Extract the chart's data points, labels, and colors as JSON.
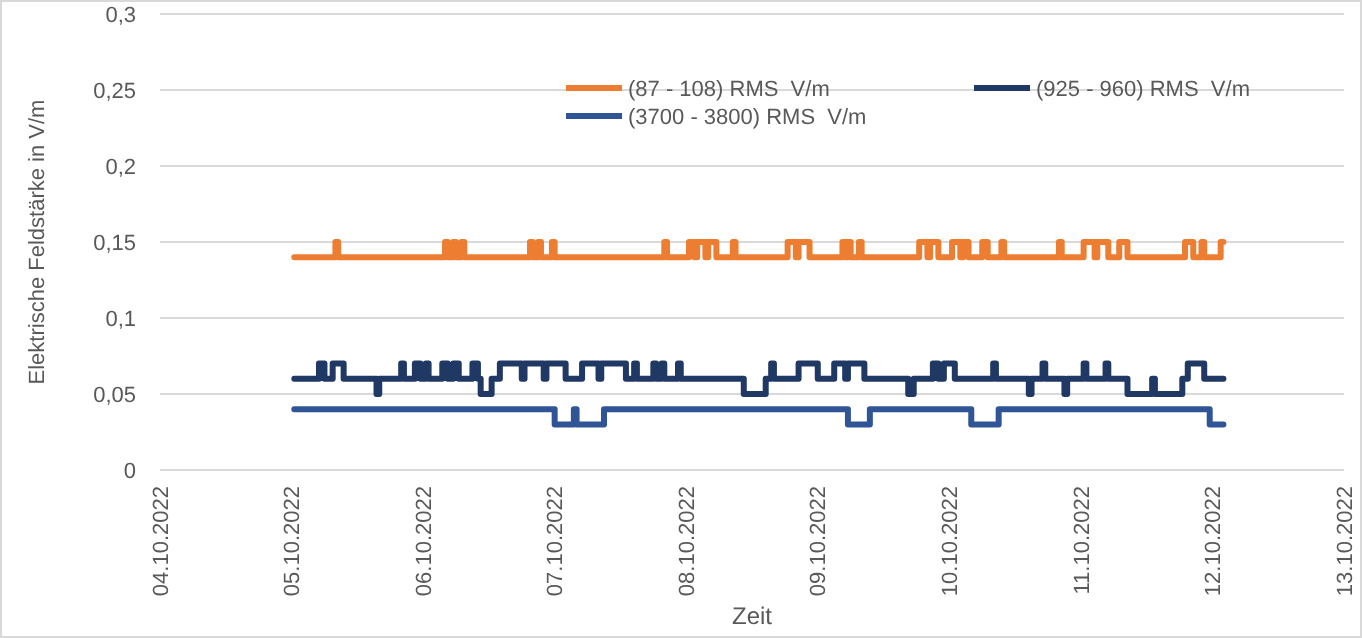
{
  "chart_data": {
    "type": "line",
    "xlabel": "Zeit",
    "ylabel": "Elektrische Feldstärke in V/m",
    "grid": "y",
    "legend": "top",
    "xlim": [
      "2022-10-04",
      "2022-10-13"
    ],
    "xticks": [
      {
        "value": "2022-10-04",
        "label": "04.10.2022"
      },
      {
        "value": "2022-10-05",
        "label": "05.10.2022"
      },
      {
        "value": "2022-10-06",
        "label": "06.10.2022"
      },
      {
        "value": "2022-10-07",
        "label": "07.10.2022"
      },
      {
        "value": "2022-10-08",
        "label": "08.10.2022"
      },
      {
        "value": "2022-10-09",
        "label": "09.10.2022"
      },
      {
        "value": "2022-10-10",
        "label": "10.10.2022"
      },
      {
        "value": "2022-10-11",
        "label": "11.10.2022"
      },
      {
        "value": "2022-10-12",
        "label": "12.10.2022"
      },
      {
        "value": "2022-10-13",
        "label": "13.10.2022"
      }
    ],
    "ylim": [
      0,
      0.3
    ],
    "yticks": [
      0,
      {
        "value": 0.05,
        "label": "0,05"
      },
      {
        "value": 0.1,
        "label": "0,1"
      },
      {
        "value": 0.15,
        "label": "0,15"
      },
      {
        "value": 0.2,
        "label": "0,2"
      },
      {
        "value": 0.25,
        "label": "0,25"
      },
      {
        "value": 0.3,
        "label": "0,3"
      }
    ],
    "series": [
      {
        "name": "(87 - 108) RMS  V/m",
        "color": "#ed7d31",
        "x": [
          "2022-10-05T00:30",
          "2022-10-05T08:00",
          "2022-10-05T08:00",
          "2022-10-05T08:30",
          "2022-10-05T08:30",
          "2022-10-06T04:00",
          "2022-10-06T04:00",
          "2022-10-06T04:30",
          "2022-10-06T04:30",
          "2022-10-06T05:30",
          "2022-10-06T05:30",
          "2022-10-06T06:00",
          "2022-10-06T06:00",
          "2022-10-06T07:00",
          "2022-10-06T07:00",
          "2022-10-06T07:30",
          "2022-10-06T07:30",
          "2022-10-06T19:30",
          "2022-10-06T19:30",
          "2022-10-06T20:00",
          "2022-10-06T20:00",
          "2022-10-06T21:00",
          "2022-10-06T21:00",
          "2022-10-06T21:30",
          "2022-10-06T21:30",
          "2022-10-06T23:30",
          "2022-10-06T23:30",
          "2022-10-07T00:00",
          "2022-10-07T00:00",
          "2022-10-07T20:00",
          "2022-10-07T20:00",
          "2022-10-07T20:30",
          "2022-10-07T20:30",
          "2022-10-08T00:30",
          "2022-10-08T00:30",
          "2022-10-08T01:30",
          "2022-10-08T01:30",
          "2022-10-08T02:00",
          "2022-10-08T02:00",
          "2022-10-08T03:30",
          "2022-10-08T03:30",
          "2022-10-08T04:00",
          "2022-10-08T04:00",
          "2022-10-08T05:30",
          "2022-10-08T05:30",
          "2022-10-08T08:30",
          "2022-10-08T08:30",
          "2022-10-08T09:00",
          "2022-10-08T09:00",
          "2022-10-08T18:30",
          "2022-10-08T18:30",
          "2022-10-08T20:00",
          "2022-10-08T20:00",
          "2022-10-08T20:30",
          "2022-10-08T20:30",
          "2022-10-08T22:30",
          "2022-10-08T22:30",
          "2022-10-09T04:30",
          "2022-10-09T04:30",
          "2022-10-09T05:00",
          "2022-10-09T05:00",
          "2022-10-09T05:30",
          "2022-10-09T05:30",
          "2022-10-09T06:00",
          "2022-10-09T06:00",
          "2022-10-09T07:30",
          "2022-10-09T07:30",
          "2022-10-09T08:00",
          "2022-10-09T08:00",
          "2022-10-09T18:30",
          "2022-10-09T18:30",
          "2022-10-09T20:00",
          "2022-10-09T20:00",
          "2022-10-09T20:30",
          "2022-10-09T20:30",
          "2022-10-09T22:00",
          "2022-10-09T22:00",
          "2022-10-10T00:30",
          "2022-10-10T00:30",
          "2022-10-10T02:00",
          "2022-10-10T02:00",
          "2022-10-10T02:30",
          "2022-10-10T02:30",
          "2022-10-10T03:30",
          "2022-10-10T03:30",
          "2022-10-10T06:00",
          "2022-10-10T06:00",
          "2022-10-10T07:00",
          "2022-10-10T07:00",
          "2022-10-10T09:30",
          "2022-10-10T09:30",
          "2022-10-10T10:00",
          "2022-10-10T10:00",
          "2022-10-10T20:00",
          "2022-10-10T20:00",
          "2022-10-10T20:30",
          "2022-10-10T20:30",
          "2022-10-11T00:30",
          "2022-10-11T00:30",
          "2022-10-11T02:30",
          "2022-10-11T02:30",
          "2022-10-11T03:00",
          "2022-10-11T03:00",
          "2022-10-11T05:00",
          "2022-10-11T05:00",
          "2022-10-11T07:00",
          "2022-10-11T07:00",
          "2022-10-11T08:30",
          "2022-10-11T08:30",
          "2022-10-11T19:00",
          "2022-10-11T19:00",
          "2022-10-11T20:30",
          "2022-10-11T20:30",
          "2022-10-11T22:00",
          "2022-10-11T22:00",
          "2022-10-11T22:30",
          "2022-10-11T22:30",
          "2022-10-12T01:30",
          "2022-10-12T01:30",
          "2022-10-12T02:00"
        ],
        "values": [
          0.14,
          0.14,
          0.15,
          0.15,
          0.14,
          0.14,
          0.15,
          0.15,
          0.14,
          0.14,
          0.15,
          0.15,
          0.14,
          0.14,
          0.15,
          0.15,
          0.14,
          0.14,
          0.15,
          0.15,
          0.14,
          0.14,
          0.15,
          0.15,
          0.14,
          0.14,
          0.15,
          0.15,
          0.14,
          0.14,
          0.15,
          0.15,
          0.14,
          0.14,
          0.15,
          0.15,
          0.14,
          0.14,
          0.15,
          0.15,
          0.14,
          0.14,
          0.15,
          0.15,
          0.14,
          0.14,
          0.15,
          0.15,
          0.14,
          0.14,
          0.15,
          0.15,
          0.14,
          0.14,
          0.15,
          0.15,
          0.14,
          0.14,
          0.15,
          0.15,
          0.14,
          0.14,
          0.15,
          0.15,
          0.14,
          0.14,
          0.15,
          0.15,
          0.14,
          0.14,
          0.15,
          0.15,
          0.14,
          0.14,
          0.15,
          0.15,
          0.14,
          0.14,
          0.15,
          0.15,
          0.14,
          0.14,
          0.15,
          0.15,
          0.14,
          0.14,
          0.15,
          0.15,
          0.14,
          0.14,
          0.15,
          0.15,
          0.14,
          0.14,
          0.15,
          0.15,
          0.14,
          0.14,
          0.15,
          0.15,
          0.14,
          0.14,
          0.15,
          0.15,
          0.14,
          0.14,
          0.15,
          0.15,
          0.14,
          0.14,
          0.15,
          0.15,
          0.14,
          0.14,
          0.15,
          0.15,
          0.14,
          0.14,
          0.15,
          0.15
        ]
      },
      {
        "name": "(925 - 960) RMS  V/m",
        "color": "#203864",
        "x": [
          "2022-10-05T00:30",
          "2022-10-05T05:00",
          "2022-10-05T05:00",
          "2022-10-05T06:00",
          "2022-10-05T06:00",
          "2022-10-05T07:30",
          "2022-10-05T07:30",
          "2022-10-05T09:30",
          "2022-10-05T09:30",
          "2022-10-05T15:30",
          "2022-10-05T15:30",
          "2022-10-05T16:00",
          "2022-10-05T16:00",
          "2022-10-05T20:00",
          "2022-10-05T20:00",
          "2022-10-05T20:30",
          "2022-10-05T20:30",
          "2022-10-05T22:30",
          "2022-10-05T22:30",
          "2022-10-05T23:30",
          "2022-10-05T23:30",
          "2022-10-06T00:30",
          "2022-10-06T00:30",
          "2022-10-06T01:00",
          "2022-10-06T01:00",
          "2022-10-06T03:30",
          "2022-10-06T03:30",
          "2022-10-06T04:30",
          "2022-10-06T04:30",
          "2022-10-06T05:30",
          "2022-10-06T05:30",
          "2022-10-06T06:30",
          "2022-10-06T06:30",
          "2022-10-06T09:00",
          "2022-10-06T09:00",
          "2022-10-06T10:00",
          "2022-10-06T10:00",
          "2022-10-06T10:30",
          "2022-10-06T10:30",
          "2022-10-06T12:30",
          "2022-10-06T12:30",
          "2022-10-06T14:00",
          "2022-10-06T14:00",
          "2022-10-06T18:00",
          "2022-10-06T18:00",
          "2022-10-06T18:30",
          "2022-10-06T18:30",
          "2022-10-06T22:00",
          "2022-10-06T22:00",
          "2022-10-06T22:30",
          "2022-10-06T22:30",
          "2022-10-07T02:00",
          "2022-10-07T02:00",
          "2022-10-07T05:00",
          "2022-10-07T05:00",
          "2022-10-07T08:00",
          "2022-10-07T08:00",
          "2022-10-07T08:30",
          "2022-10-07T08:30",
          "2022-10-07T13:00",
          "2022-10-07T13:00",
          "2022-10-07T14:30",
          "2022-10-07T14:30",
          "2022-10-07T15:00",
          "2022-10-07T15:00",
          "2022-10-07T18:00",
          "2022-10-07T18:00",
          "2022-10-07T18:30",
          "2022-10-07T18:30",
          "2022-10-07T19:30",
          "2022-10-07T19:30",
          "2022-10-07T20:00",
          "2022-10-07T20:00",
          "2022-10-07T22:30",
          "2022-10-07T22:30",
          "2022-10-07T23:00",
          "2022-10-07T23:00",
          "2022-10-08T10:30",
          "2022-10-08T10:30",
          "2022-10-08T14:30",
          "2022-10-08T14:30",
          "2022-10-08T15:30",
          "2022-10-08T15:30",
          "2022-10-08T16:00",
          "2022-10-08T16:00",
          "2022-10-08T20:30",
          "2022-10-08T20:30",
          "2022-10-09T00:00",
          "2022-10-09T00:00",
          "2022-10-09T03:00",
          "2022-10-09T03:00",
          "2022-10-09T05:00",
          "2022-10-09T05:00",
          "2022-10-09T05:30",
          "2022-10-09T05:30",
          "2022-10-09T08:30",
          "2022-10-09T08:30",
          "2022-10-09T16:30",
          "2022-10-09T16:30",
          "2022-10-09T17:30",
          "2022-10-09T17:30",
          "2022-10-09T21:00",
          "2022-10-09T21:00",
          "2022-10-09T22:00",
          "2022-10-09T22:00",
          "2022-10-09T23:00",
          "2022-10-09T23:00",
          "2022-10-10T01:00",
          "2022-10-10T01:00",
          "2022-10-10T08:00",
          "2022-10-10T08:00",
          "2022-10-10T08:30",
          "2022-10-10T08:30",
          "2022-10-10T14:30",
          "2022-10-10T14:30",
          "2022-10-10T15:00",
          "2022-10-10T15:00",
          "2022-10-10T17:00",
          "2022-10-10T17:00",
          "2022-10-10T17:30",
          "2022-10-10T17:30",
          "2022-10-10T21:00",
          "2022-10-10T21:00",
          "2022-10-10T21:30",
          "2022-10-10T21:30",
          "2022-10-11T00:30",
          "2022-10-11T00:30",
          "2022-10-11T01:00",
          "2022-10-11T01:00",
          "2022-10-11T04:30",
          "2022-10-11T04:30",
          "2022-10-11T05:00",
          "2022-10-11T05:00",
          "2022-10-11T08:30",
          "2022-10-11T08:30",
          "2022-10-11T13:00",
          "2022-10-11T13:00",
          "2022-10-11T13:30",
          "2022-10-11T13:30",
          "2022-10-11T18:30",
          "2022-10-11T18:30",
          "2022-10-11T19:30",
          "2022-10-11T19:30",
          "2022-10-11T22:30",
          "2022-10-11T22:30",
          "2022-10-12T02:00"
        ],
        "values": [
          0.06,
          0.06,
          0.07,
          0.07,
          0.06,
          0.06,
          0.07,
          0.07,
          0.06,
          0.06,
          0.05,
          0.05,
          0.06,
          0.06,
          0.07,
          0.07,
          0.06,
          0.06,
          0.07,
          0.07,
          0.06,
          0.06,
          0.07,
          0.07,
          0.06,
          0.06,
          0.07,
          0.07,
          0.06,
          0.06,
          0.07,
          0.07,
          0.06,
          0.06,
          0.07,
          0.07,
          0.06,
          0.06,
          0.05,
          0.05,
          0.06,
          0.06,
          0.07,
          0.07,
          0.06,
          0.06,
          0.07,
          0.07,
          0.06,
          0.06,
          0.07,
          0.07,
          0.06,
          0.06,
          0.07,
          0.07,
          0.06,
          0.06,
          0.07,
          0.07,
          0.06,
          0.06,
          0.07,
          0.07,
          0.06,
          0.06,
          0.07,
          0.07,
          0.06,
          0.06,
          0.07,
          0.07,
          0.06,
          0.06,
          0.07,
          0.07,
          0.06,
          0.06,
          0.05,
          0.05,
          0.06,
          0.06,
          0.07,
          0.07,
          0.06,
          0.06,
          0.07,
          0.07,
          0.06,
          0.06,
          0.07,
          0.07,
          0.06,
          0.06,
          0.07,
          0.07,
          0.06,
          0.06,
          0.05,
          0.05,
          0.06,
          0.06,
          0.07,
          0.07,
          0.06,
          0.06,
          0.07,
          0.07,
          0.06,
          0.06,
          0.07,
          0.07,
          0.06,
          0.06,
          0.05,
          0.05,
          0.06,
          0.06,
          0.07,
          0.07,
          0.06,
          0.06,
          0.05,
          0.05,
          0.06,
          0.06,
          0.07,
          0.07,
          0.06,
          0.06,
          0.07,
          0.07,
          0.06,
          0.06,
          0.05,
          0.05,
          0.06,
          0.06,
          0.05,
          0.05,
          0.06,
          0.06,
          0.07,
          0.07,
          0.06,
          0.06
        ]
      },
      {
        "name": "(3700 - 3800) RMS  V/m",
        "color": "#2f5597",
        "x": [
          "2022-10-05T00:30",
          "2022-10-07T00:00",
          "2022-10-07T00:00",
          "2022-10-07T03:30",
          "2022-10-07T03:30",
          "2022-10-07T04:00",
          "2022-10-07T04:00",
          "2022-10-07T09:00",
          "2022-10-07T09:00",
          "2022-10-09T05:30",
          "2022-10-09T05:30",
          "2022-10-09T09:30",
          "2022-10-09T09:30",
          "2022-10-10T04:00",
          "2022-10-10T04:00",
          "2022-10-10T09:00",
          "2022-10-10T09:00",
          "2022-10-11T23:30",
          "2022-10-11T23:30",
          "2022-10-12T02:00"
        ],
        "values": [
          0.04,
          0.04,
          0.03,
          0.03,
          0.04,
          0.04,
          0.03,
          0.03,
          0.04,
          0.04,
          0.03,
          0.03,
          0.04,
          0.04,
          0.03,
          0.03,
          0.04,
          0.04,
          0.03,
          0.03
        ]
      }
    ]
  }
}
